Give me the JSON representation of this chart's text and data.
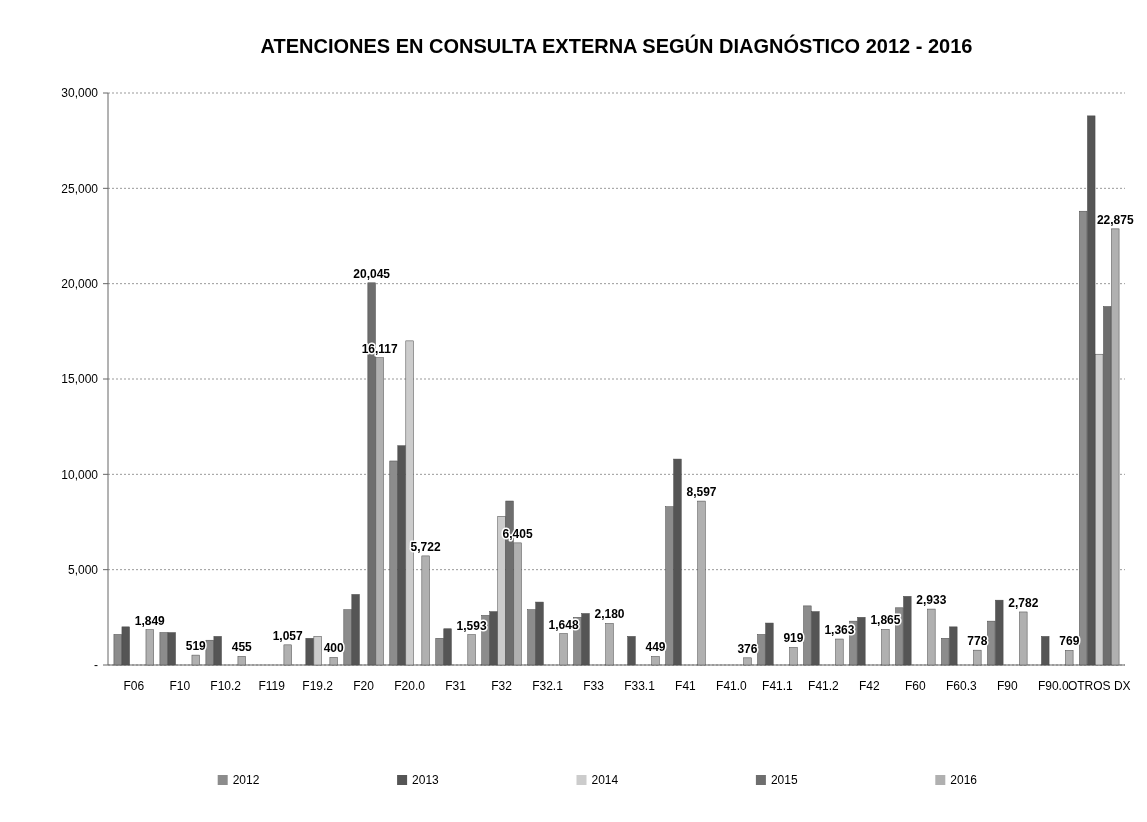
{
  "chart_data": {
    "type": "bar",
    "title": "ATENCIONES EN CONSULTA EXTERNA SEGÚN DIAGNÓSTICO 2012 - 2016",
    "categories": [
      "F06",
      "F10",
      "F10.2",
      "F119",
      "F19.2",
      "F20",
      "F20.0",
      "F31",
      "F32",
      "F32.1",
      "F33",
      "F33.1",
      "F41",
      "F41.0",
      "F41.1",
      "F41.2",
      "F42",
      "F60",
      "F60.3",
      "F90",
      "F90.0",
      "OTROS DX"
    ],
    "series": [
      {
        "name": "2012",
        "color": "#8c8c8c",
        "values": [
          1600,
          1700,
          1300,
          null,
          null,
          2900,
          10700,
          1400,
          2600,
          2900,
          2500,
          null,
          8300,
          null,
          1600,
          3100,
          2300,
          3000,
          1400,
          2300,
          null,
          23800
        ]
      },
      {
        "name": "2013",
        "color": "#555555",
        "values": [
          2000,
          1700,
          1500,
          null,
          1400,
          3700,
          11500,
          1900,
          2800,
          3300,
          2700,
          1500,
          10800,
          null,
          2200,
          2800,
          2500,
          3600,
          2000,
          3400,
          1500,
          28800
        ]
      },
      {
        "name": "2014",
        "color": "#cccccc",
        "values": [
          null,
          null,
          null,
          null,
          1500,
          null,
          17000,
          null,
          7800,
          null,
          null,
          null,
          null,
          null,
          null,
          null,
          null,
          null,
          null,
          null,
          null,
          16300
        ]
      },
      {
        "name": "2015",
        "color": "#6e6e6e",
        "values": [
          null,
          null,
          null,
          null,
          null,
          20045,
          null,
          null,
          8600,
          null,
          null,
          null,
          null,
          null,
          null,
          null,
          null,
          null,
          null,
          null,
          null,
          18800
        ],
        "value_labels": [
          null,
          null,
          null,
          null,
          null,
          "20,045",
          null,
          null,
          null,
          null,
          null,
          null,
          null,
          null,
          null,
          null,
          null,
          null,
          null,
          null,
          null,
          null
        ]
      },
      {
        "name": "2016",
        "color": "#b0b0b0",
        "values": [
          1849,
          519,
          455,
          1057,
          400,
          16117,
          5722,
          1593,
          6405,
          1648,
          2180,
          449,
          8597,
          376,
          919,
          1363,
          1865,
          2933,
          778,
          2782,
          769,
          22875
        ],
        "value_labels": [
          "1,849",
          "519",
          "455",
          "1,057",
          "400",
          "16,117",
          "5,722",
          "1,593",
          "6,405",
          "1,648",
          "2,180",
          "449",
          "8,597",
          "376",
          "919",
          "1,363",
          "1,865",
          "2,933",
          "778",
          "2,782",
          "769",
          "22,875"
        ]
      }
    ],
    "ylim": [
      0,
      30000
    ],
    "yticks": [
      {
        "value": 0,
        "label": "-"
      },
      {
        "value": 5000,
        "label": "5,000"
      },
      {
        "value": 10000,
        "label": "10,000"
      },
      {
        "value": 15000,
        "label": "15,000"
      },
      {
        "value": 20000,
        "label": "20,000"
      },
      {
        "value": 25000,
        "label": "25,000"
      },
      {
        "value": 30000,
        "label": "30,000"
      }
    ],
    "grid": true,
    "legend": "bottom"
  }
}
